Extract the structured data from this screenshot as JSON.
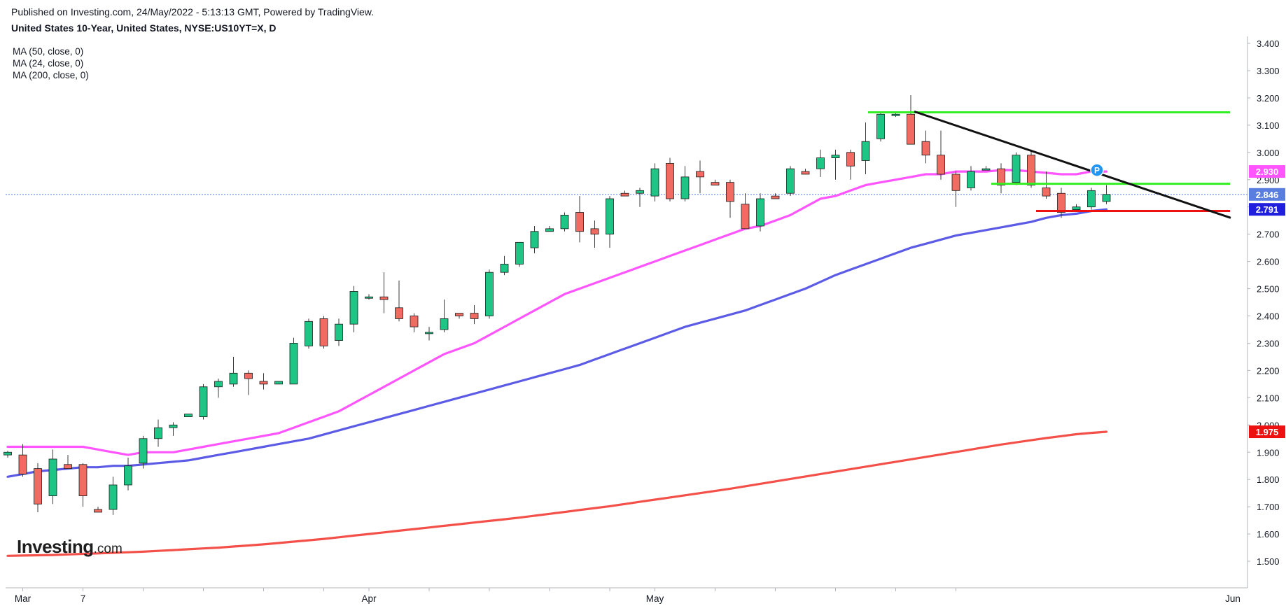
{
  "header": {
    "published": "Published on Investing.com, 24/May/2022 - 5:13:13 GMT, Powered by TradingView.",
    "symbol": "United States 10-Year, United States, NYSE:US10YT=X, D"
  },
  "indicators": [
    "MA (50, close, 0)",
    "MA (24, close, 0)",
    "MA (200, close, 0)"
  ],
  "logo": {
    "brand": "Investing",
    "tld": ".com"
  },
  "colors": {
    "up": "#1ec685",
    "down": "#f26b62",
    "wick": "#3b3b3b",
    "ma24": "#ff55ff",
    "ma50": "#5b5be6",
    "ma200": "#f4504a",
    "resistance": "#33ee22",
    "support": "#ee1111",
    "trend": "#111111",
    "last_price": "#5a7ee0"
  },
  "chart_data": {
    "type": "candlestick",
    "y_axis": {
      "min": 1.45,
      "max": 3.42,
      "position": "right",
      "ticks": [
        "1.500",
        "1.600",
        "1.700",
        "1.800",
        "1.900",
        "2.000",
        "2.100",
        "2.200",
        "2.300",
        "2.400",
        "2.500",
        "2.600",
        "2.700",
        "2.800",
        "2.900",
        "3.000",
        "3.100",
        "3.200",
        "3.300",
        "3.400"
      ]
    },
    "x_axis": {
      "labels": [
        {
          "label": "Mar",
          "index": 1
        },
        {
          "label": "7",
          "index": 5
        },
        {
          "label": "Apr",
          "index": 24
        },
        {
          "label": "May",
          "index": 43
        },
        {
          "label": "Jun",
          "index": 66
        }
      ],
      "day_ticks": [
        1,
        5,
        9,
        13,
        17,
        21,
        24,
        28,
        32,
        36,
        40,
        43,
        47,
        51,
        55,
        59,
        63
      ]
    },
    "candles": [
      {
        "o": 1.89,
        "h": 1.905,
        "l": 1.88,
        "c": 1.9
      },
      {
        "o": 1.89,
        "h": 1.93,
        "l": 1.81,
        "c": 1.82
      },
      {
        "o": 1.84,
        "h": 1.86,
        "l": 1.68,
        "c": 1.71
      },
      {
        "o": 1.74,
        "h": 1.91,
        "l": 1.71,
        "c": 1.875
      },
      {
        "o": 1.855,
        "h": 1.89,
        "l": 1.84,
        "c": 1.84
      },
      {
        "o": 1.855,
        "h": 1.86,
        "l": 1.7,
        "c": 1.74
      },
      {
        "o": 1.69,
        "h": 1.7,
        "l": 1.68,
        "c": 1.68
      },
      {
        "o": 1.69,
        "h": 1.81,
        "l": 1.67,
        "c": 1.78
      },
      {
        "o": 1.78,
        "h": 1.88,
        "l": 1.76,
        "c": 1.85
      },
      {
        "o": 1.86,
        "h": 1.96,
        "l": 1.84,
        "c": 1.95
      },
      {
        "o": 1.95,
        "h": 2.02,
        "l": 1.92,
        "c": 1.99
      },
      {
        "o": 1.99,
        "h": 2.01,
        "l": 1.96,
        "c": 2.0
      },
      {
        "o": 2.03,
        "h": 2.04,
        "l": 2.03,
        "c": 2.04
      },
      {
        "o": 2.03,
        "h": 2.15,
        "l": 2.02,
        "c": 2.14
      },
      {
        "o": 2.14,
        "h": 2.17,
        "l": 2.1,
        "c": 2.16
      },
      {
        "o": 2.15,
        "h": 2.25,
        "l": 2.14,
        "c": 2.19
      },
      {
        "o": 2.19,
        "h": 2.2,
        "l": 2.11,
        "c": 2.17
      },
      {
        "o": 2.16,
        "h": 2.19,
        "l": 2.13,
        "c": 2.15
      },
      {
        "o": 2.15,
        "h": 2.16,
        "l": 2.15,
        "c": 2.16
      },
      {
        "o": 2.15,
        "h": 2.32,
        "l": 2.15,
        "c": 2.3
      },
      {
        "o": 2.29,
        "h": 2.39,
        "l": 2.28,
        "c": 2.38
      },
      {
        "o": 2.39,
        "h": 2.4,
        "l": 2.28,
        "c": 2.29
      },
      {
        "o": 2.31,
        "h": 2.39,
        "l": 2.29,
        "c": 2.37
      },
      {
        "o": 2.37,
        "h": 2.51,
        "l": 2.34,
        "c": 2.49
      },
      {
        "o": 2.47,
        "h": 2.48,
        "l": 2.46,
        "c": 2.47
      },
      {
        "o": 2.47,
        "h": 2.56,
        "l": 2.41,
        "c": 2.46
      },
      {
        "o": 2.43,
        "h": 2.53,
        "l": 2.38,
        "c": 2.39
      },
      {
        "o": 2.4,
        "h": 2.41,
        "l": 2.34,
        "c": 2.36
      },
      {
        "o": 2.34,
        "h": 2.36,
        "l": 2.31,
        "c": 2.34
      },
      {
        "o": 2.35,
        "h": 2.46,
        "l": 2.34,
        "c": 2.39
      },
      {
        "o": 2.41,
        "h": 2.41,
        "l": 2.39,
        "c": 2.4
      },
      {
        "o": 2.41,
        "h": 2.44,
        "l": 2.37,
        "c": 2.39
      },
      {
        "o": 2.4,
        "h": 2.57,
        "l": 2.39,
        "c": 2.56
      },
      {
        "o": 2.56,
        "h": 2.62,
        "l": 2.55,
        "c": 2.59
      },
      {
        "o": 2.59,
        "h": 2.67,
        "l": 2.58,
        "c": 2.67
      },
      {
        "o": 2.65,
        "h": 2.73,
        "l": 2.63,
        "c": 2.71
      },
      {
        "o": 2.71,
        "h": 2.73,
        "l": 2.71,
        "c": 2.72
      },
      {
        "o": 2.72,
        "h": 2.78,
        "l": 2.71,
        "c": 2.77
      },
      {
        "o": 2.78,
        "h": 2.84,
        "l": 2.67,
        "c": 2.71
      },
      {
        "o": 2.72,
        "h": 2.75,
        "l": 2.65,
        "c": 2.7
      },
      {
        "o": 2.7,
        "h": 2.84,
        "l": 2.65,
        "c": 2.83
      },
      {
        "o": 2.85,
        "h": 2.86,
        "l": 2.84,
        "c": 2.84
      },
      {
        "o": 2.85,
        "h": 2.87,
        "l": 2.8,
        "c": 2.86
      },
      {
        "o": 2.84,
        "h": 2.96,
        "l": 2.82,
        "c": 2.94
      },
      {
        "o": 2.96,
        "h": 2.98,
        "l": 2.82,
        "c": 2.83
      },
      {
        "o": 2.83,
        "h": 2.95,
        "l": 2.82,
        "c": 2.91
      },
      {
        "o": 2.93,
        "h": 2.97,
        "l": 2.85,
        "c": 2.91
      },
      {
        "o": 2.89,
        "h": 2.9,
        "l": 2.88,
        "c": 2.88
      },
      {
        "o": 2.89,
        "h": 2.9,
        "l": 2.76,
        "c": 2.82
      },
      {
        "o": 2.81,
        "h": 2.85,
        "l": 2.72,
        "c": 2.72
      },
      {
        "o": 2.73,
        "h": 2.85,
        "l": 2.71,
        "c": 2.83
      },
      {
        "o": 2.84,
        "h": 2.85,
        "l": 2.83,
        "c": 2.83
      },
      {
        "o": 2.85,
        "h": 2.95,
        "l": 2.84,
        "c": 2.94
      },
      {
        "o": 2.93,
        "h": 2.94,
        "l": 2.92,
        "c": 2.92
      },
      {
        "o": 2.94,
        "h": 3.01,
        "l": 2.91,
        "c": 2.98
      },
      {
        "o": 2.98,
        "h": 3.01,
        "l": 2.9,
        "c": 2.99
      },
      {
        "o": 3.0,
        "h": 3.01,
        "l": 2.9,
        "c": 2.95
      },
      {
        "o": 2.97,
        "h": 3.11,
        "l": 2.92,
        "c": 3.04
      },
      {
        "o": 3.05,
        "h": 3.15,
        "l": 3.04,
        "c": 3.14
      },
      {
        "o": 3.14,
        "h": 3.15,
        "l": 3.13,
        "c": 3.14
      },
      {
        "o": 3.14,
        "h": 3.21,
        "l": 3.03,
        "c": 3.03
      },
      {
        "o": 3.04,
        "h": 3.08,
        "l": 2.96,
        "c": 2.99
      },
      {
        "o": 2.99,
        "h": 3.08,
        "l": 2.9,
        "c": 2.92
      },
      {
        "o": 2.92,
        "h": 2.93,
        "l": 2.8,
        "c": 2.86
      },
      {
        "o": 2.87,
        "h": 2.95,
        "l": 2.86,
        "c": 2.93
      },
      {
        "o": 2.94,
        "h": 2.95,
        "l": 2.94,
        "c": 2.94
      },
      {
        "o": 2.94,
        "h": 2.96,
        "l": 2.85,
        "c": 2.88
      },
      {
        "o": 2.89,
        "h": 3.0,
        "l": 2.88,
        "c": 2.99
      },
      {
        "o": 2.99,
        "h": 3.01,
        "l": 2.87,
        "c": 2.88
      },
      {
        "o": 2.87,
        "h": 2.93,
        "l": 2.83,
        "c": 2.84
      },
      {
        "o": 2.85,
        "h": 2.87,
        "l": 2.76,
        "c": 2.78
      },
      {
        "o": 2.79,
        "h": 2.81,
        "l": 2.79,
        "c": 2.8
      },
      {
        "o": 2.8,
        "h": 2.87,
        "l": 2.79,
        "c": 2.86
      },
      {
        "o": 2.82,
        "h": 2.88,
        "l": 2.81,
        "c": 2.846
      }
    ],
    "series": [
      {
        "name": "MA (24, close, 0)",
        "values": [
          1.92,
          1.92,
          1.92,
          1.92,
          1.92,
          1.92,
          1.91,
          1.9,
          1.89,
          1.9,
          1.9,
          1.9,
          1.91,
          1.92,
          1.93,
          1.94,
          1.95,
          1.96,
          1.97,
          1.99,
          2.01,
          2.03,
          2.05,
          2.08,
          2.11,
          2.14,
          2.17,
          2.2,
          2.23,
          2.26,
          2.28,
          2.3,
          2.33,
          2.36,
          2.39,
          2.42,
          2.45,
          2.48,
          2.5,
          2.52,
          2.54,
          2.56,
          2.58,
          2.6,
          2.62,
          2.64,
          2.66,
          2.68,
          2.7,
          2.72,
          2.73,
          2.75,
          2.77,
          2.8,
          2.83,
          2.84,
          2.86,
          2.88,
          2.89,
          2.9,
          2.91,
          2.92,
          2.92,
          2.93,
          2.93,
          2.93,
          2.935,
          2.935,
          2.93,
          2.925,
          2.92,
          2.92,
          2.93,
          2.93
        ]
      },
      {
        "name": "MA (50, close, 0)",
        "values": [
          1.81,
          1.82,
          1.83,
          1.835,
          1.84,
          1.845,
          1.845,
          1.85,
          1.85,
          1.855,
          1.86,
          1.865,
          1.87,
          1.88,
          1.89,
          1.9,
          1.91,
          1.92,
          1.93,
          1.94,
          1.95,
          1.965,
          1.98,
          1.995,
          2.01,
          2.025,
          2.04,
          2.055,
          2.07,
          2.085,
          2.1,
          2.115,
          2.13,
          2.145,
          2.16,
          2.175,
          2.19,
          2.205,
          2.22,
          2.24,
          2.26,
          2.28,
          2.3,
          2.32,
          2.34,
          2.36,
          2.375,
          2.39,
          2.405,
          2.42,
          2.44,
          2.46,
          2.48,
          2.5,
          2.525,
          2.55,
          2.57,
          2.59,
          2.61,
          2.63,
          2.65,
          2.665,
          2.68,
          2.695,
          2.705,
          2.715,
          2.725,
          2.735,
          2.745,
          2.76,
          2.77,
          2.775,
          2.785,
          2.791
        ]
      },
      {
        "name": "MA (200, close, 0)",
        "values": [
          1.52,
          1.521,
          1.522,
          1.523,
          1.525,
          1.527,
          1.529,
          1.531,
          1.533,
          1.535,
          1.538,
          1.541,
          1.544,
          1.547,
          1.55,
          1.554,
          1.558,
          1.562,
          1.567,
          1.572,
          1.577,
          1.582,
          1.588,
          1.594,
          1.6,
          1.606,
          1.612,
          1.618,
          1.624,
          1.63,
          1.636,
          1.642,
          1.648,
          1.654,
          1.66,
          1.667,
          1.674,
          1.681,
          1.688,
          1.695,
          1.702,
          1.71,
          1.718,
          1.726,
          1.734,
          1.742,
          1.75,
          1.758,
          1.766,
          1.775,
          1.784,
          1.793,
          1.802,
          1.811,
          1.82,
          1.829,
          1.838,
          1.847,
          1.856,
          1.865,
          1.874,
          1.883,
          1.892,
          1.901,
          1.91,
          1.919,
          1.928,
          1.936,
          1.944,
          1.952,
          1.959,
          1.966,
          1.971,
          1.975
        ]
      }
    ],
    "drawings": {
      "resistance_upper": {
        "from": [
          58,
          3.147
        ],
        "to": [
          71,
          3.147
        ]
      },
      "resistance_lower": {
        "from": [
          66,
          2.885
        ],
        "to": [
          71,
          2.885
        ]
      },
      "support": {
        "from": [
          69,
          2.785
        ],
        "to": [
          71,
          2.785
        ]
      },
      "trendline": {
        "from": [
          60,
          3.15
        ],
        "to": [
          71,
          2.76
        ]
      }
    },
    "price_labels": [
      {
        "name": "MA (24, close, 0)",
        "value": "2.930"
      },
      {
        "name": "last",
        "value": "2.846"
      },
      {
        "name": "MA (50, close, 0)",
        "value": "2.791"
      },
      {
        "name": "MA (200, close, 0)",
        "value": "1.975"
      }
    ],
    "marker": "P",
    "grid": false
  }
}
